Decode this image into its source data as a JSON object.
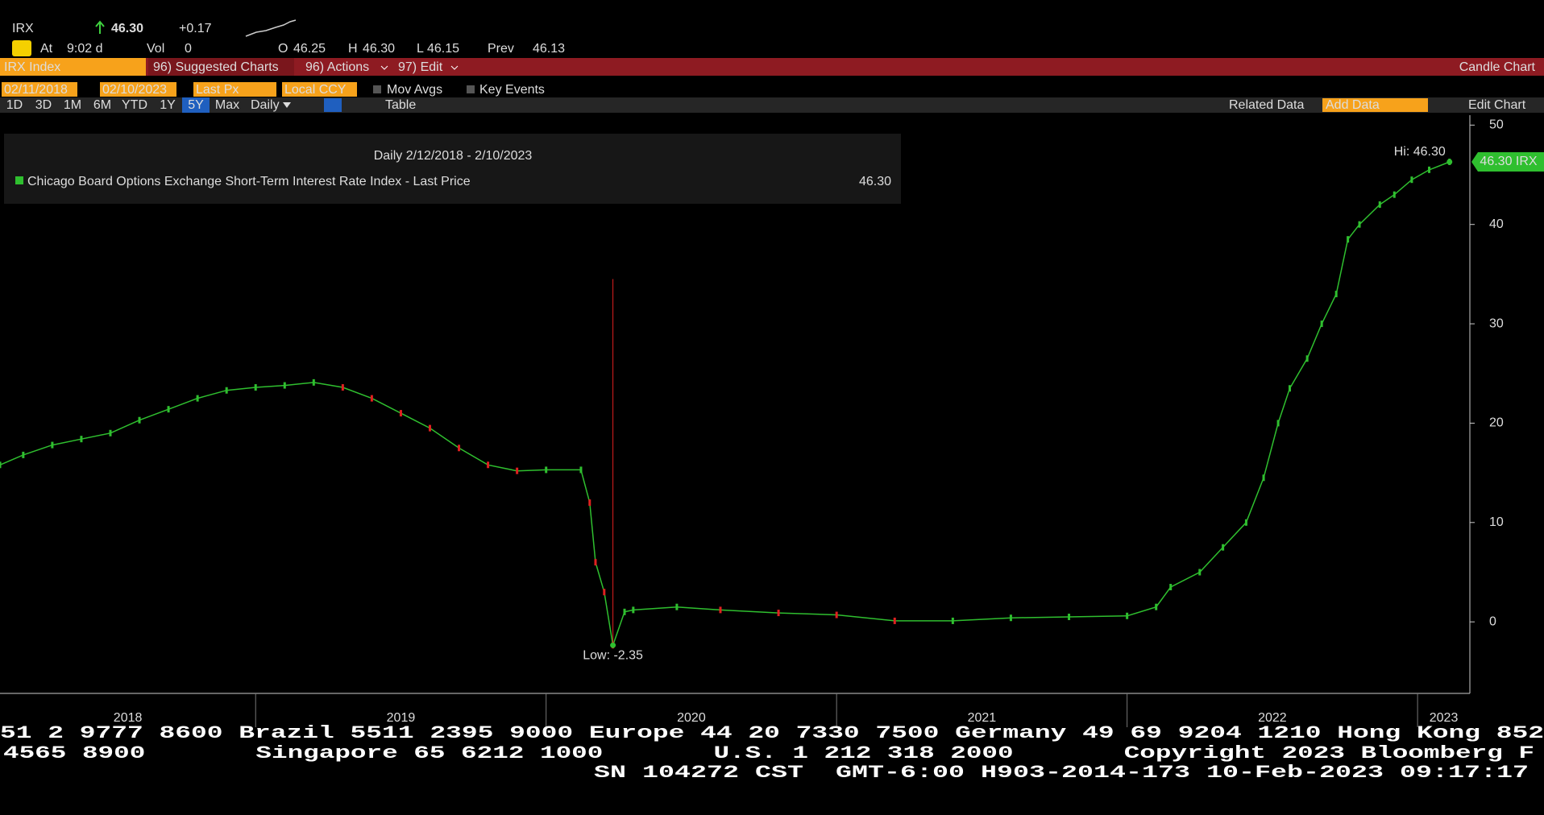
{
  "header": {
    "ticker": "IRX",
    "price": "46.30",
    "change": "+0.17",
    "at_label": "At",
    "time": "9:02 d",
    "vol_label": "Vol",
    "vol": "0",
    "open_label": "O",
    "open": "46.25",
    "high_label": "H",
    "high": "46.30",
    "low_label": "L",
    "low": "46.15",
    "prev_label": "Prev",
    "prev": "46.13"
  },
  "menu": {
    "security": "IRX Index",
    "suggested": "96) Suggested Charts",
    "actions": "96) Actions",
    "edit": "97) Edit",
    "chart_type": "Candle Chart"
  },
  "controls": {
    "start_date": "02/11/2018",
    "end_date": "02/10/2023",
    "field": "Last Px",
    "currency": "Local CCY",
    "mov_avgs": "Mov Avgs",
    "key_events": "Key Events",
    "ranges": [
      "1D",
      "3D",
      "1M",
      "6M",
      "YTD",
      "1Y",
      "5Y",
      "Max"
    ],
    "selected_range": 6,
    "period": "Daily",
    "table": "Table",
    "related_data": "Related Data",
    "add_data": "Add Data",
    "edit_chart": "Edit Chart"
  },
  "chart_data": {
    "type": "line",
    "title": "Daily 2/12/2018 - 2/10/2023",
    "legend_value": "46.30",
    "x": [
      2018.12,
      2018.2,
      2018.3,
      2018.4,
      2018.5,
      2018.6,
      2018.7,
      2018.8,
      2018.9,
      2019.0,
      2019.1,
      2019.2,
      2019.3,
      2019.4,
      2019.5,
      2019.6,
      2019.7,
      2019.8,
      2019.9,
      2020.0,
      2020.12,
      2020.15,
      2020.17,
      2020.2,
      2020.23,
      2020.27,
      2020.3,
      2020.45,
      2020.6,
      2020.8,
      2021.0,
      2021.2,
      2021.4,
      2021.6,
      2021.8,
      2022.0,
      2022.1,
      2022.15,
      2022.25,
      2022.33,
      2022.41,
      2022.47,
      2022.52,
      2022.56,
      2022.62,
      2022.67,
      2022.72,
      2022.76,
      2022.8,
      2022.87,
      2022.92,
      2022.98,
      2023.04,
      2023.11
    ],
    "series": [
      {
        "name": "Chicago Board Options Exchange Short-Term Interest Rate Index - Last Price",
        "color": "#2fbf2f",
        "down_color": "#e02020",
        "values": [
          15.8,
          16.8,
          17.8,
          18.4,
          19.0,
          20.3,
          21.4,
          22.5,
          23.3,
          23.6,
          23.8,
          24.1,
          23.6,
          22.5,
          21.0,
          19.5,
          17.5,
          15.8,
          15.2,
          15.3,
          15.3,
          12.0,
          6.0,
          3.0,
          -2.35,
          1.0,
          1.2,
          1.5,
          1.2,
          0.9,
          0.7,
          0.1,
          0.1,
          0.4,
          0.5,
          0.6,
          1.5,
          3.5,
          5.0,
          7.5,
          10.0,
          14.5,
          20.0,
          23.5,
          26.5,
          30.0,
          33.0,
          38.5,
          40.0,
          42.0,
          43.0,
          44.5,
          45.5,
          46.3
        ]
      }
    ],
    "xlim": [
      2018.12,
      2023.18
    ],
    "xticks": [
      {
        "value": 2018,
        "label": "2018"
      },
      {
        "value": 2019,
        "label": "2019"
      },
      {
        "value": 2020,
        "label": "2020"
      },
      {
        "value": 2021,
        "label": "2021"
      },
      {
        "value": 2022,
        "label": "2022"
      },
      {
        "value": 2023,
        "label": "2023"
      }
    ],
    "ylim": [
      -7.2,
      51
    ],
    "yticks": [
      0,
      10,
      20,
      30,
      40,
      50
    ],
    "high": {
      "x": 2023.11,
      "value": 46.3,
      "label": "Hi: 46.30"
    },
    "low": {
      "x": 2020.23,
      "value": -2.35,
      "label": "Low: -2.35"
    },
    "last": {
      "value": 46.3,
      "label": "46.30 IRX"
    }
  },
  "footer": [
    "51 2 9777 8600 Brazil 5511 2395 9000 Europe 44 20 7330 7500 Germany 49 69 9204 1210 Hong Kong 852",
    "4565 8900       Singapore 65 6212 1000       U.S. 1 212 318 2000       Copyright 2023 Bloomberg F",
    "SN 104272 CST  GMT-6:00 H903-2014-173 10-Feb-2023 09:17:17"
  ]
}
